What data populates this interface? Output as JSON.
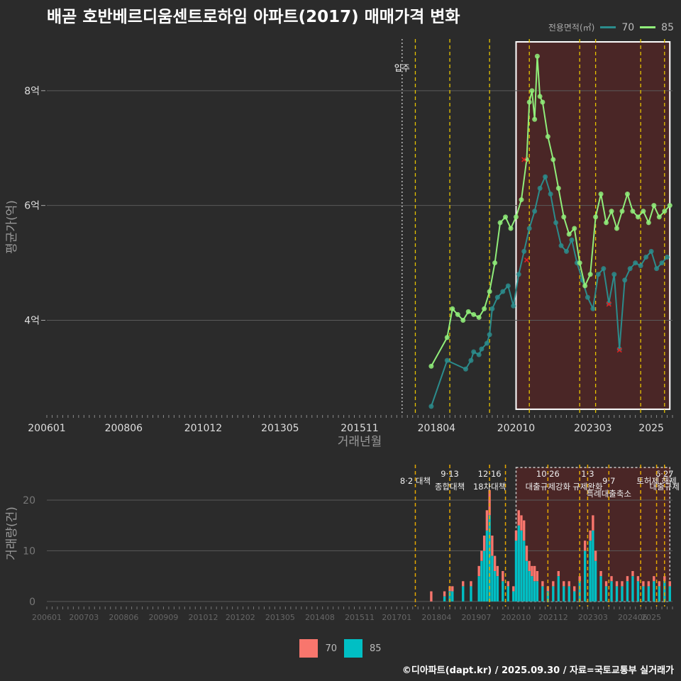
{
  "title": "배곧 호반베르디움센트로하임 아파트(2017) 매매가격 변화",
  "legend": {
    "title": "전용면적(㎡)",
    "items": [
      {
        "label": "70",
        "line_color": "#2b8c8c",
        "fill_color": "#f8766d"
      },
      {
        "label": "85",
        "line_color": "#90ee7a",
        "fill_color": "#00bfc4"
      }
    ]
  },
  "footer": "©디아파트(dapt.kr) / 2025.09.30 / 자료=국토교통부 실거래가",
  "colors": {
    "background": "#2b2b2b",
    "grid": "#5a5a5a",
    "highlight_fill": "#4a2626",
    "policy_line": "#e6c300",
    "movein_line": "#bbbbbb"
  },
  "chart_data": [
    {
      "type": "line",
      "panel": "price",
      "xlabel": "거래년월",
      "ylabel": "평균가(억)",
      "x_ticks": [
        "200601",
        "200806",
        "201012",
        "201305",
        "201511",
        "201804",
        "202010",
        "202303",
        "2025"
      ],
      "y_ticks": [
        "4억",
        "6억",
        "8억"
      ],
      "y_tick_values": [
        4,
        6,
        8
      ],
      "ylim": [
        2.35,
        8.9
      ],
      "xlim": [
        "2006-01",
        "2025-09"
      ],
      "movein": {
        "date": "2017-03",
        "label": "입주"
      },
      "policy_dates": [
        "2017-08",
        "2018-09",
        "2019-12",
        "2021-03",
        "2022-10",
        "2023-04",
        "2024-09",
        "2025-06"
      ],
      "highlight": {
        "from": "2020-10",
        "to": "2025-08"
      },
      "series": [
        {
          "name": "70",
          "x": [
            "2018-02",
            "2018-08",
            "2019-03",
            "2019-05",
            "2019-06",
            "2019-08",
            "2019-09",
            "2019-11",
            "2019-12",
            "2020-01",
            "2020-03",
            "2020-05",
            "2020-07",
            "2020-09",
            "2020-11",
            "2021-01",
            "2021-03",
            "2021-05",
            "2021-07",
            "2021-09",
            "2021-11",
            "2022-01",
            "2022-03",
            "2022-05",
            "2022-07",
            "2022-09",
            "2022-11",
            "2023-01",
            "2023-03",
            "2023-05",
            "2023-07",
            "2023-09",
            "2023-11",
            "2024-01",
            "2024-03",
            "2024-05",
            "2024-07",
            "2024-09",
            "2024-11",
            "2025-01",
            "2025-03",
            "2025-05",
            "2025-07"
          ],
          "y": [
            2.5,
            3.3,
            3.15,
            3.3,
            3.45,
            3.4,
            3.5,
            3.6,
            3.75,
            4.2,
            4.4,
            4.5,
            4.6,
            4.25,
            4.8,
            5.2,
            5.6,
            5.9,
            6.3,
            6.5,
            6.2,
            5.7,
            5.3,
            5.2,
            5.4,
            5.0,
            4.7,
            4.4,
            4.2,
            4.8,
            4.9,
            4.3,
            4.8,
            3.5,
            4.7,
            4.9,
            5.0,
            4.95,
            5.1,
            5.2,
            4.9,
            5.0,
            5.1
          ]
        },
        {
          "name": "85",
          "x": [
            "2018-02",
            "2018-08",
            "2018-10",
            "2018-12",
            "2019-02",
            "2019-04",
            "2019-06",
            "2019-08",
            "2019-10",
            "2019-12",
            "2020-02",
            "2020-04",
            "2020-06",
            "2020-08",
            "2020-10",
            "2020-12",
            "2021-02",
            "2021-03",
            "2021-04",
            "2021-05",
            "2021-06",
            "2021-07",
            "2021-08",
            "2021-10",
            "2021-12",
            "2022-02",
            "2022-04",
            "2022-06",
            "2022-08",
            "2022-10",
            "2022-12",
            "2023-02",
            "2023-04",
            "2023-06",
            "2023-08",
            "2023-10",
            "2023-12",
            "2024-02",
            "2024-04",
            "2024-06",
            "2024-08",
            "2024-10",
            "2024-12",
            "2025-02",
            "2025-04",
            "2025-06",
            "2025-08"
          ],
          "y": [
            3.2,
            3.7,
            4.2,
            4.1,
            4.0,
            4.15,
            4.1,
            4.05,
            4.2,
            4.5,
            5.0,
            5.7,
            5.8,
            5.6,
            5.8,
            6.1,
            6.8,
            7.8,
            8.0,
            7.5,
            8.6,
            7.9,
            7.8,
            7.2,
            6.8,
            6.3,
            5.8,
            5.5,
            5.6,
            5.0,
            4.6,
            4.8,
            5.8,
            6.2,
            5.7,
            5.9,
            5.6,
            5.9,
            6.2,
            5.9,
            5.8,
            5.9,
            5.7,
            6.0,
            5.8,
            5.9,
            6.0
          ]
        }
      ],
      "cancelled_marks": [
        {
          "x": "2021-01",
          "y": 6.8
        },
        {
          "x": "2021-02",
          "y": 5.05
        },
        {
          "x": "2023-09",
          "y": 4.28
        },
        {
          "x": "2024-01",
          "y": 3.48
        }
      ]
    },
    {
      "type": "bar",
      "panel": "volume",
      "stacked": true,
      "ylabel": "거래량(건)",
      "x_ticks": [
        "200601",
        "200703",
        "200806",
        "200909",
        "201012",
        "201202",
        "201305",
        "201408",
        "201511",
        "201701",
        "201804",
        "201907",
        "202010",
        "202112",
        "202303",
        "202406",
        "2025"
      ],
      "y_ticks": [
        "0",
        "10",
        "20"
      ],
      "y_tick_values": [
        0,
        10,
        20
      ],
      "ylim": [
        -1,
        27
      ],
      "xlim": [
        "2006-01",
        "2025-09"
      ],
      "highlight": {
        "from": "2020-10",
        "to": "2025-08"
      },
      "policy_lines": [
        {
          "date": "2017-08",
          "label": "8·2 대책",
          "row": 1
        },
        {
          "date": "2018-09",
          "label": "9·13\n종합대책",
          "row": 0
        },
        {
          "date": "2019-12",
          "label": "12·16\n18차대책",
          "row": 0
        },
        {
          "date": "2020-06",
          "label": "",
          "row": 0
        },
        {
          "date": "2021-10",
          "label": "10·26\n대출규제강화",
          "row": 0
        },
        {
          "date": "2022-10",
          "label": "",
          "row": 0
        },
        {
          "date": "2023-01",
          "label": "1·3\n규제완화",
          "row": 0
        },
        {
          "date": "2023-09",
          "label": "9·7\n특례대출축소",
          "row": 1
        },
        {
          "date": "2024-09",
          "label": "",
          "row": 0
        },
        {
          "date": "2025-06",
          "label": "6·27\n대출규제",
          "row": 0
        },
        {
          "date": "2025-03",
          "label": "토허제 해제",
          "row": 1
        }
      ],
      "series": [
        {
          "name": "70",
          "x": [
            "2018-02",
            "2018-07",
            "2018-09",
            "2018-10",
            "2019-02",
            "2019-05",
            "2019-08",
            "2019-09",
            "2019-10",
            "2019-11",
            "2019-12",
            "2020-01",
            "2020-02",
            "2020-03",
            "2020-05",
            "2020-07",
            "2020-09",
            "2020-10",
            "2020-11",
            "2020-12",
            "2021-01",
            "2021-02",
            "2021-03",
            "2021-04",
            "2021-05",
            "2021-06",
            "2021-08",
            "2021-10",
            "2021-12",
            "2022-02",
            "2022-04",
            "2022-06",
            "2022-08",
            "2022-10",
            "2022-12",
            "2023-02",
            "2023-03",
            "2023-04",
            "2023-06",
            "2023-08",
            "2023-10",
            "2023-12",
            "2024-02",
            "2024-04",
            "2024-06",
            "2024-08",
            "2024-10",
            "2024-12",
            "2025-02",
            "2025-04",
            "2025-06",
            "2025-08"
          ],
          "y": [
            2,
            1,
            1,
            1,
            1,
            1,
            2,
            2,
            3,
            4,
            5,
            4,
            3,
            2,
            2,
            1,
            1,
            2,
            3,
            3,
            4,
            3,
            2,
            2,
            3,
            2,
            1,
            1,
            1,
            1,
            1,
            1,
            1,
            1,
            2,
            2,
            3,
            2,
            1,
            1,
            1,
            1,
            1,
            1,
            1,
            1,
            1,
            1,
            1,
            1,
            1,
            1
          ]
        },
        {
          "name": "85",
          "x": [
            "2018-02",
            "2018-07",
            "2018-09",
            "2018-10",
            "2019-02",
            "2019-05",
            "2019-08",
            "2019-09",
            "2019-10",
            "2019-11",
            "2019-12",
            "2020-01",
            "2020-02",
            "2020-03",
            "2020-05",
            "2020-07",
            "2020-09",
            "2020-10",
            "2020-11",
            "2020-12",
            "2021-01",
            "2021-02",
            "2021-03",
            "2021-04",
            "2021-05",
            "2021-06",
            "2021-08",
            "2021-10",
            "2021-12",
            "2022-02",
            "2022-04",
            "2022-06",
            "2022-08",
            "2022-10",
            "2022-12",
            "2023-02",
            "2023-03",
            "2023-04",
            "2023-06",
            "2023-08",
            "2023-10",
            "2023-12",
            "2024-02",
            "2024-04",
            "2024-06",
            "2024-08",
            "2024-10",
            "2024-12",
            "2025-02",
            "2025-04",
            "2025-06",
            "2025-08"
          ],
          "y": [
            0,
            1,
            2,
            2,
            3,
            3,
            5,
            8,
            10,
            14,
            17,
            9,
            6,
            5,
            4,
            3,
            2,
            12,
            15,
            14,
            12,
            8,
            6,
            5,
            4,
            4,
            3,
            2,
            3,
            5,
            3,
            3,
            2,
            4,
            10,
            12,
            14,
            8,
            5,
            3,
            4,
            3,
            3,
            4,
            5,
            4,
            3,
            3,
            4,
            3,
            4,
            3
          ]
        }
      ]
    }
  ]
}
